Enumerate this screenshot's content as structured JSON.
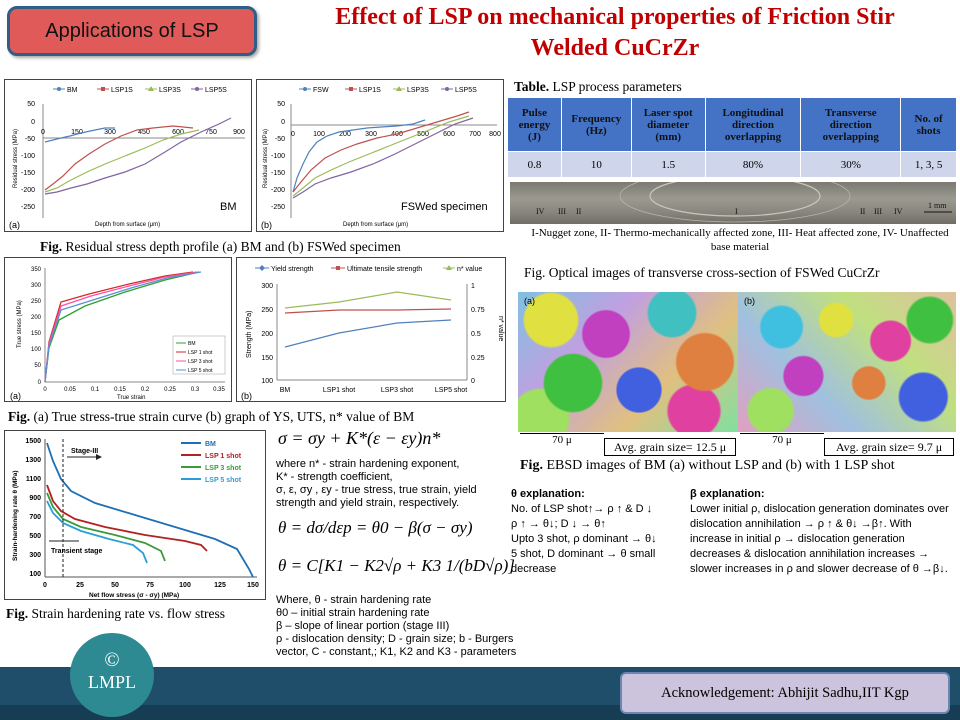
{
  "header": {
    "badge": "Applications of LSP",
    "title_line1": "Effect of LSP on mechanical properties of Friction Stir",
    "title_line2": "Welded CuCrZr"
  },
  "fig_residual": {
    "left_legend": [
      "BM",
      "LSP1S",
      "LSP3S",
      "LSP5S"
    ],
    "right_legend": [
      "FSW",
      "LSP1S",
      "LSP3S",
      "LSP5S"
    ],
    "ylabel": "Residual stress (MPa)",
    "xlabel": "Depth from surface (μm)",
    "left_tag": "(a)",
    "right_tag": "(b)",
    "left_name": "BM",
    "right_name": "FSWed specimen",
    "y_ticks": [
      "50",
      "0",
      "-50",
      "-100",
      "-150",
      "-200",
      "-250"
    ],
    "left_x_ticks": [
      "0",
      "150",
      "300",
      "450",
      "600",
      "750",
      "900"
    ],
    "right_x_ticks": [
      "0",
      "100",
      "200",
      "300",
      "400",
      "500",
      "600",
      "700",
      "800"
    ],
    "caption_bold": "Fig.",
    "caption_text": " Residual stress depth profile (a) BM and (b) FSWed specimen",
    "colors": [
      "#4f81bd",
      "#c0504d",
      "#9bbb59",
      "#8064a2"
    ]
  },
  "fig_true_stress": {
    "tag": "(a)",
    "ylabel": "True stress (MPa)",
    "xlabel": "True strain",
    "y_ticks": [
      "350",
      "300",
      "250",
      "200",
      "150",
      "100",
      "50",
      "0"
    ],
    "x_ticks": [
      "0",
      "0.05",
      "0.1",
      "0.15",
      "0.2",
      "0.25",
      "0.3",
      "0.35"
    ],
    "legend": [
      "BM",
      "LSP 1 shot",
      "LSP 3 shot",
      "LSP 5 shot"
    ],
    "colors": [
      "#2ca02c",
      "#d62728",
      "#ff4fa0",
      "#5a8fd8"
    ]
  },
  "fig_ys": {
    "tag": "(b)",
    "legend": [
      "Yield strength",
      "Ultimate tensile strength",
      "n* value"
    ],
    "categories": [
      "BM",
      "LSP1 shot",
      "LSP3 shot",
      "LSP5 shot"
    ],
    "ylabel": "Strength (MPa)",
    "y2label": "n* value",
    "y_ticks": [
      "300",
      "250",
      "200",
      "150",
      "100"
    ],
    "y2_ticks": [
      "1",
      "0.75",
      "0.5",
      "0.25",
      "0"
    ],
    "caption_bold": "Fig.",
    "caption_text": " (a) True stress-true strain curve (b) graph of YS, UTS, n* value of BM",
    "colors": [
      "#4f81bd",
      "#c0504d",
      "#9bbb59"
    ]
  },
  "fig_hardening": {
    "ylabel": "Strain-hardening rate θ (MPa)",
    "xlabel": "Net flow stress (σ - σy) (MPa)",
    "legend": [
      "BM",
      "LSP 1 shot",
      "LSP 3 shot",
      "LSP 5 shot"
    ],
    "stage3": "Stage-III",
    "transient": "Transient stage",
    "y_ticks": [
      "1500",
      "1300",
      "1100",
      "900",
      "700",
      "500",
      "300",
      "100"
    ],
    "x_ticks": [
      "0",
      "25",
      "50",
      "75",
      "100",
      "125",
      "150"
    ],
    "caption_bold": "Fig.",
    "caption_text": " Strain hardening rate vs. flow stress",
    "colors": [
      "#1f6fb4",
      "#b22222",
      "#3c9a3c",
      "#2a9fd6"
    ]
  },
  "equations": {
    "eq1": "σ = σy + K*(ε − εy)n*",
    "where1": "where n* - strain hardening exponent,",
    "where2": "K* - strength coefficient,",
    "where3": "σ, ε, σy , εy - true stress, true strain, yield strength and yield strain, respectively.",
    "eq2": "θ = dσ/dεp = θ0 − β(σ − σy)",
    "eq3": "θ = C[K1 − K2√ρ + K3 1/(bD√ρ)]",
    "where_block": [
      "Where, θ - strain hardening rate",
      "θ0 – initial strain hardening rate",
      "β – slope of linear portion (stage III)",
      "ρ - dislocation density; D - grain size; b - Burgers",
      "vector, C - constant,; K1, K2 and K3 - parameters"
    ]
  },
  "table": {
    "title_bold": "Table.",
    "title_text": " LSP process parameters",
    "headers": [
      "Pulse energy (J)",
      "Frequency (Hz)",
      "Laser spot diameter (mm)",
      "Longitudinal direction overlapping",
      "Transverse direction overlapping",
      "No. of shots"
    ],
    "row": [
      "0.8",
      "10",
      "1.5",
      "80%",
      "30%",
      "1, 3, 5"
    ]
  },
  "optical": {
    "zones": [
      "IV",
      "III",
      "II",
      "I",
      "II",
      "III",
      "IV"
    ],
    "scale": "1 mm",
    "legend": "I-Nugget zone, II- Thermo-mechanically affected zone, III- Heat affected zone, IV- Unaffected base material",
    "caption": "Fig. Optical images of transverse cross-section of FSWed CuCrZr"
  },
  "ebsd": {
    "tag_a": "(a)",
    "tag_b": "(b)",
    "scale_a": "70 μ",
    "scale_b": "70 μ",
    "grain_a": "Avg. grain size= 12.5 μ",
    "grain_b": "Avg. grain size= 9.7 μ",
    "caption_bold": "Fig.",
    "caption_text": " EBSD images of BM (a) without LSP and (b) with 1 LSP shot"
  },
  "theta_expl": {
    "title": "θ explanation:",
    "lines": [
      "No. of LSP shot↑→ ρ ↑ & D ↓",
      "ρ ↑ → θ↓; D ↓ → θ↑",
      "Upto 3 shot, ρ dominant → θ↓",
      "5 shot, D dominant → θ small",
      "decrease"
    ]
  },
  "beta_expl": {
    "title": "β explanation:",
    "text": "Lower initial ρ, dislocation generation dominates over dislocation annihilation → ρ ↑ & θ↓ →β↑. With increase in initial ρ → dislocation generation decreases & dislocation annihilation increases → slower increases in ρ and slower decrease of θ →β↓."
  },
  "footer": {
    "logo_symbol": "©",
    "logo_text": "LMPL",
    "ack": "Acknowledgement: Abhijit Sadhu,IIT Kgp"
  }
}
